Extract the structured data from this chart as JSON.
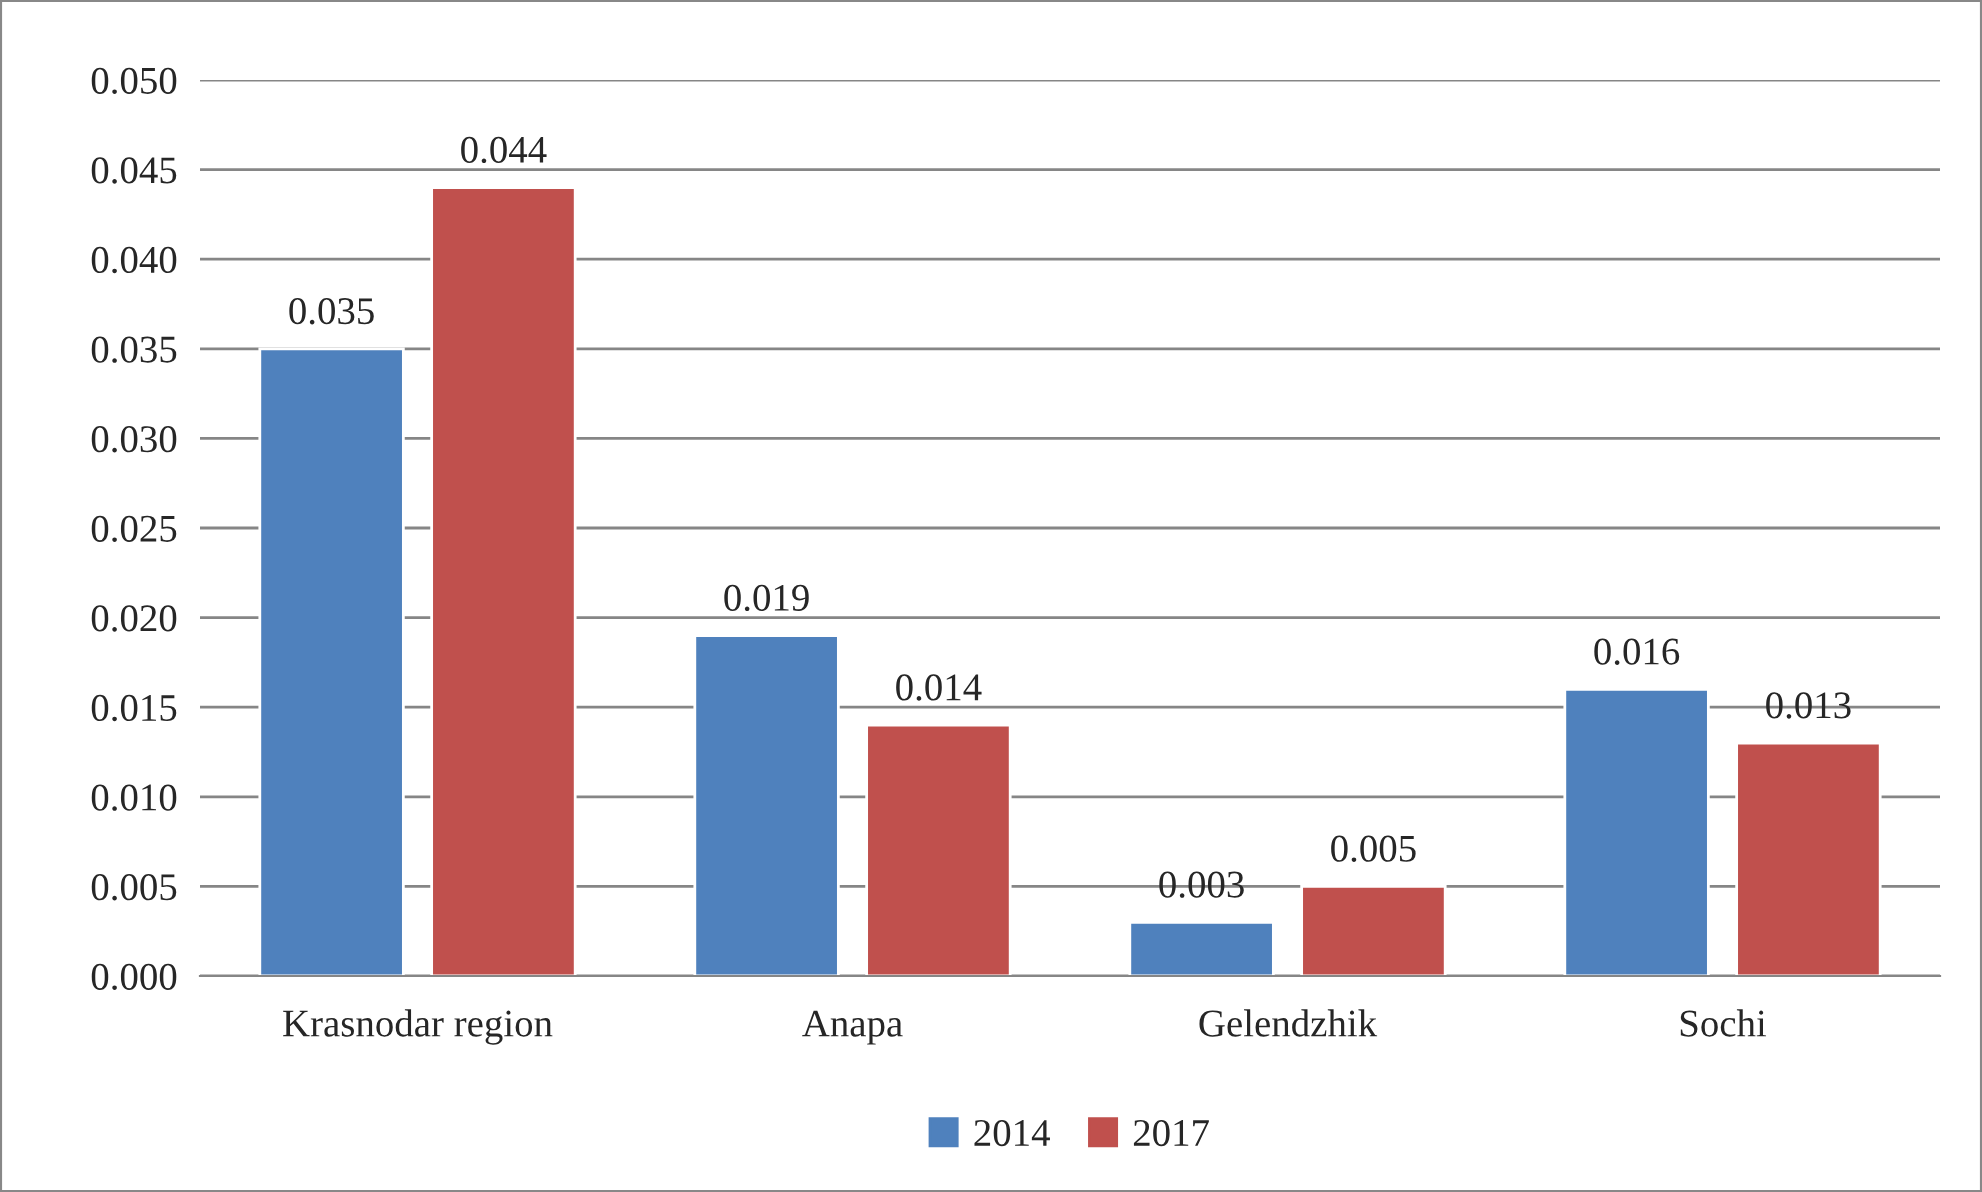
{
  "chart_data": {
    "type": "bar",
    "categories": [
      "Krasnodar region",
      "Anapa",
      "Gelendzhik",
      "Sochi"
    ],
    "series": [
      {
        "name": "2014",
        "color": "#4f81bd",
        "values": [
          0.035,
          0.019,
          0.003,
          0.016
        ]
      },
      {
        "name": "2017",
        "color": "#c0504d",
        "values": [
          0.044,
          0.014,
          0.005,
          0.013
        ]
      }
    ],
    "ylim": [
      0,
      0.05
    ],
    "yticks": [
      {
        "value": 0,
        "label": "0.000"
      },
      {
        "value": 0.005,
        "label": "0.005"
      },
      {
        "value": 0.01,
        "label": "0.010"
      },
      {
        "value": 0.015,
        "label": "0.015"
      },
      {
        "value": 0.02,
        "label": "0.020"
      },
      {
        "value": 0.025,
        "label": "0.025"
      },
      {
        "value": 0.03,
        "label": "0.030"
      },
      {
        "value": 0.035,
        "label": "0.035"
      },
      {
        "value": 0.04,
        "label": "0.040"
      },
      {
        "value": 0.045,
        "label": "0.045"
      },
      {
        "value": 0.05,
        "label": "0.050"
      }
    ],
    "grid": "y",
    "legend": "bottom",
    "data_labels": true
  }
}
